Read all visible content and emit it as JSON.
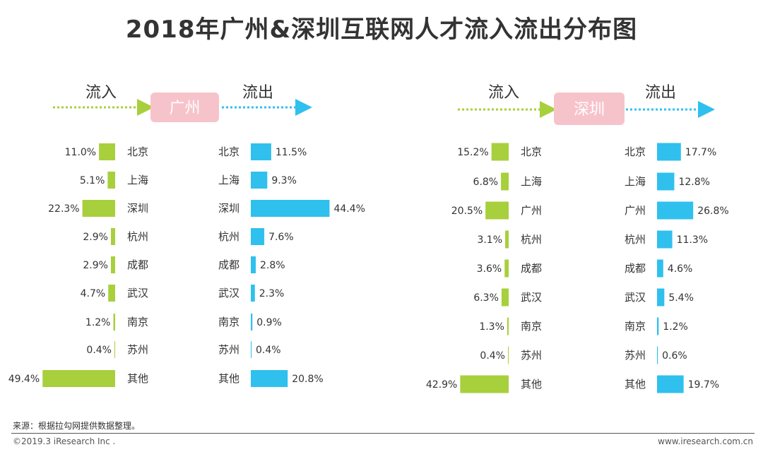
{
  "title": "2018年广州&深圳互联网人才流入流出分布图",
  "labels": {
    "inflow": "流入",
    "outflow": "流出"
  },
  "colors": {
    "inflow": "#a8cf3c",
    "outflow": "#2fc0ee",
    "city_box": "#f7c3cb",
    "city_text": "#ffffff"
  },
  "chart_data": [
    {
      "type": "bar",
      "title": "广州",
      "categories_inflow": [
        "北京",
        "上海",
        "深圳",
        "杭州",
        "成都",
        "武汉",
        "南京",
        "苏州",
        "其他"
      ],
      "categories_outflow": [
        "北京",
        "上海",
        "深圳",
        "杭州",
        "成都",
        "武汉",
        "南京",
        "苏州",
        "其他"
      ],
      "series": [
        {
          "name": "流入",
          "values": [
            11.0,
            5.1,
            22.3,
            2.9,
            2.9,
            4.7,
            1.2,
            0.4,
            49.4
          ]
        },
        {
          "name": "流出",
          "values": [
            11.5,
            9.3,
            44.4,
            7.6,
            2.8,
            2.3,
            0.9,
            0.4,
            20.8
          ]
        }
      ],
      "unit": "%"
    },
    {
      "type": "bar",
      "title": "深圳",
      "categories_inflow": [
        "北京",
        "上海",
        "广州",
        "杭州",
        "成都",
        "武汉",
        "南京",
        "苏州",
        "其他"
      ],
      "categories_outflow": [
        "北京",
        "上海",
        "广州",
        "杭州",
        "成都",
        "武汉",
        "南京",
        "苏州",
        "其他"
      ],
      "series": [
        {
          "name": "流入",
          "values": [
            15.2,
            6.8,
            20.5,
            3.1,
            3.6,
            6.3,
            1.3,
            0.4,
            42.9
          ]
        },
        {
          "name": "流出",
          "values": [
            17.7,
            12.8,
            26.8,
            11.3,
            4.6,
            5.4,
            1.2,
            0.6,
            19.7
          ]
        }
      ],
      "unit": "%"
    }
  ],
  "footer": {
    "source": "来源：根据拉勾网提供数据整理。",
    "copyright": "©2019.3 iResearch Inc .",
    "website": "www.iresearch.com.cn"
  }
}
